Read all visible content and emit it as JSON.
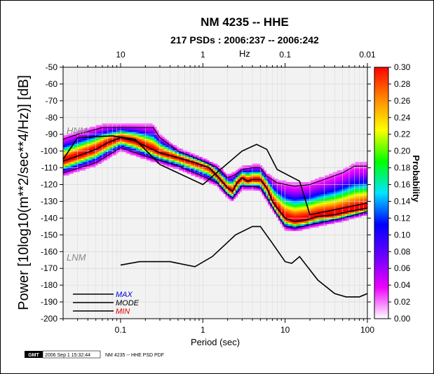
{
  "chart_data": {
    "type": "heatmap",
    "title": "NM 4235 -- HHE",
    "subtitle": "217 PSDs : 2006:237 -- 2006:242",
    "xlabel": "Period (sec)",
    "top_xlabel": "Hz",
    "ylabel": "Power [10log10(m**2/sec**4/Hz)] [dB]",
    "x_scale": "log",
    "xlim": [
      0.02,
      100
    ],
    "ylim": [
      -200,
      -50
    ],
    "x_ticks": [
      {
        "value": 0.1,
        "label": "0.1"
      },
      {
        "value": 1,
        "label": "1"
      },
      {
        "value": 10,
        "label": "10"
      },
      {
        "value": 100,
        "label": "100"
      }
    ],
    "top_ticks": [
      {
        "value": 0.1,
        "label": "10"
      },
      {
        "value": 1,
        "label": "1"
      },
      {
        "value": 10,
        "label": "0.1"
      },
      {
        "value": 100,
        "label": "0.01"
      }
    ],
    "y_ticks": [
      -50,
      -60,
      -70,
      -80,
      -90,
      -100,
      -110,
      -120,
      -130,
      -140,
      -150,
      -160,
      -170,
      -180,
      -190,
      -200
    ],
    "colorbar": {
      "label": "Probability",
      "min": 0.0,
      "max": 0.3,
      "ticks": [
        "0.00",
        "0.02",
        "0.04",
        "0.06",
        "0.08",
        "0.10",
        "0.12",
        "0.14",
        "0.16",
        "0.18",
        "0.20",
        "0.22",
        "0.24",
        "0.26",
        "0.28",
        "0.30"
      ],
      "colors": [
        "#ffffff",
        "#ee00ff",
        "#6a00ff",
        "#0000ff",
        "#00e5ff",
        "#00ff00",
        "#ffff00",
        "#ff8800",
        "#ff0000"
      ]
    },
    "models": [
      {
        "name": "HNM",
        "points": [
          [
            0.02,
            -105
          ],
          [
            0.03,
            -92
          ],
          [
            0.08,
            -91
          ],
          [
            0.15,
            -93
          ],
          [
            0.3,
            -108
          ],
          [
            1,
            -120
          ],
          [
            3,
            -100
          ],
          [
            4.5,
            -96
          ],
          [
            6,
            -99
          ],
          [
            8,
            -111
          ],
          [
            15,
            -118
          ],
          [
            20,
            -138
          ],
          [
            100,
            -131
          ]
        ]
      },
      {
        "name": "LNM",
        "points": [
          [
            0.1,
            -168
          ],
          [
            0.17,
            -166
          ],
          [
            0.4,
            -166
          ],
          [
            0.8,
            -169
          ],
          [
            1.3,
            -163
          ],
          [
            2.5,
            -150
          ],
          [
            4,
            -145
          ],
          [
            5,
            -145
          ],
          [
            7,
            -155
          ],
          [
            10,
            -166
          ],
          [
            12,
            -167
          ],
          [
            15,
            -163
          ],
          [
            25,
            -177
          ],
          [
            40,
            -185
          ],
          [
            55,
            -187
          ],
          [
            80,
            -187
          ],
          [
            100,
            -185
          ]
        ]
      }
    ],
    "series": [
      {
        "name": "MAX",
        "points": [
          [
            0.02,
            -93
          ],
          [
            0.03,
            -90
          ],
          [
            0.06,
            -86
          ],
          [
            0.1,
            -86
          ],
          [
            0.2,
            -86
          ],
          [
            0.25,
            -86
          ],
          [
            0.3,
            -92
          ],
          [
            0.5,
            -100
          ],
          [
            1,
            -106
          ],
          [
            1.5,
            -110
          ],
          [
            2,
            -116
          ],
          [
            2.5,
            -114
          ],
          [
            3,
            -111
          ],
          [
            4,
            -110
          ],
          [
            5,
            -110
          ],
          [
            6,
            -115
          ],
          [
            8,
            -119
          ],
          [
            13,
            -121
          ],
          [
            20,
            -120
          ],
          [
            50,
            -113
          ],
          [
            70,
            -109
          ],
          [
            100,
            -109
          ]
        ]
      },
      {
        "name": "MODE",
        "points": [
          [
            0.02,
            -106
          ],
          [
            0.03,
            -103
          ],
          [
            0.05,
            -99
          ],
          [
            0.07,
            -95
          ],
          [
            0.1,
            -92
          ],
          [
            0.15,
            -94
          ],
          [
            0.2,
            -97
          ],
          [
            0.3,
            -101
          ],
          [
            0.5,
            -104
          ],
          [
            0.8,
            -107
          ],
          [
            1.2,
            -110
          ],
          [
            1.5,
            -115
          ],
          [
            2,
            -122
          ],
          [
            2.3,
            -124
          ],
          [
            2.6,
            -119
          ],
          [
            3,
            -116
          ],
          [
            3.5,
            -118
          ],
          [
            4,
            -117
          ],
          [
            5,
            -117
          ],
          [
            6,
            -122
          ],
          [
            7,
            -130
          ],
          [
            8,
            -134
          ],
          [
            10,
            -140
          ],
          [
            13,
            -142
          ],
          [
            18,
            -141
          ],
          [
            25,
            -139
          ],
          [
            40,
            -138
          ],
          [
            60,
            -136
          ],
          [
            100,
            -134
          ]
        ]
      },
      {
        "name": "MIN",
        "points": [
          [
            0.02,
            -113
          ],
          [
            0.05,
            -107
          ],
          [
            0.1,
            -98
          ],
          [
            0.2,
            -103
          ],
          [
            0.5,
            -109
          ],
          [
            1,
            -115
          ],
          [
            1.5,
            -119
          ],
          [
            2,
            -126
          ],
          [
            2.3,
            -128
          ],
          [
            3,
            -121
          ],
          [
            4,
            -121
          ],
          [
            5,
            -122
          ],
          [
            6,
            -128
          ],
          [
            8,
            -138
          ],
          [
            10,
            -145
          ],
          [
            13,
            -146
          ],
          [
            20,
            -144
          ],
          [
            50,
            -140
          ],
          [
            100,
            -136
          ]
        ]
      }
    ],
    "legend": {
      "placement": "bottom-left",
      "entries": [
        "MAX",
        "MODE",
        "MIN"
      ],
      "colors": [
        "#0000dd",
        "#000000",
        "#dd0000"
      ]
    }
  },
  "footer": {
    "logo": "GMT",
    "timestamp": "2006 Sep  1 15:32:44",
    "caption": "NM 4235 -- HHE PSD PDF"
  }
}
